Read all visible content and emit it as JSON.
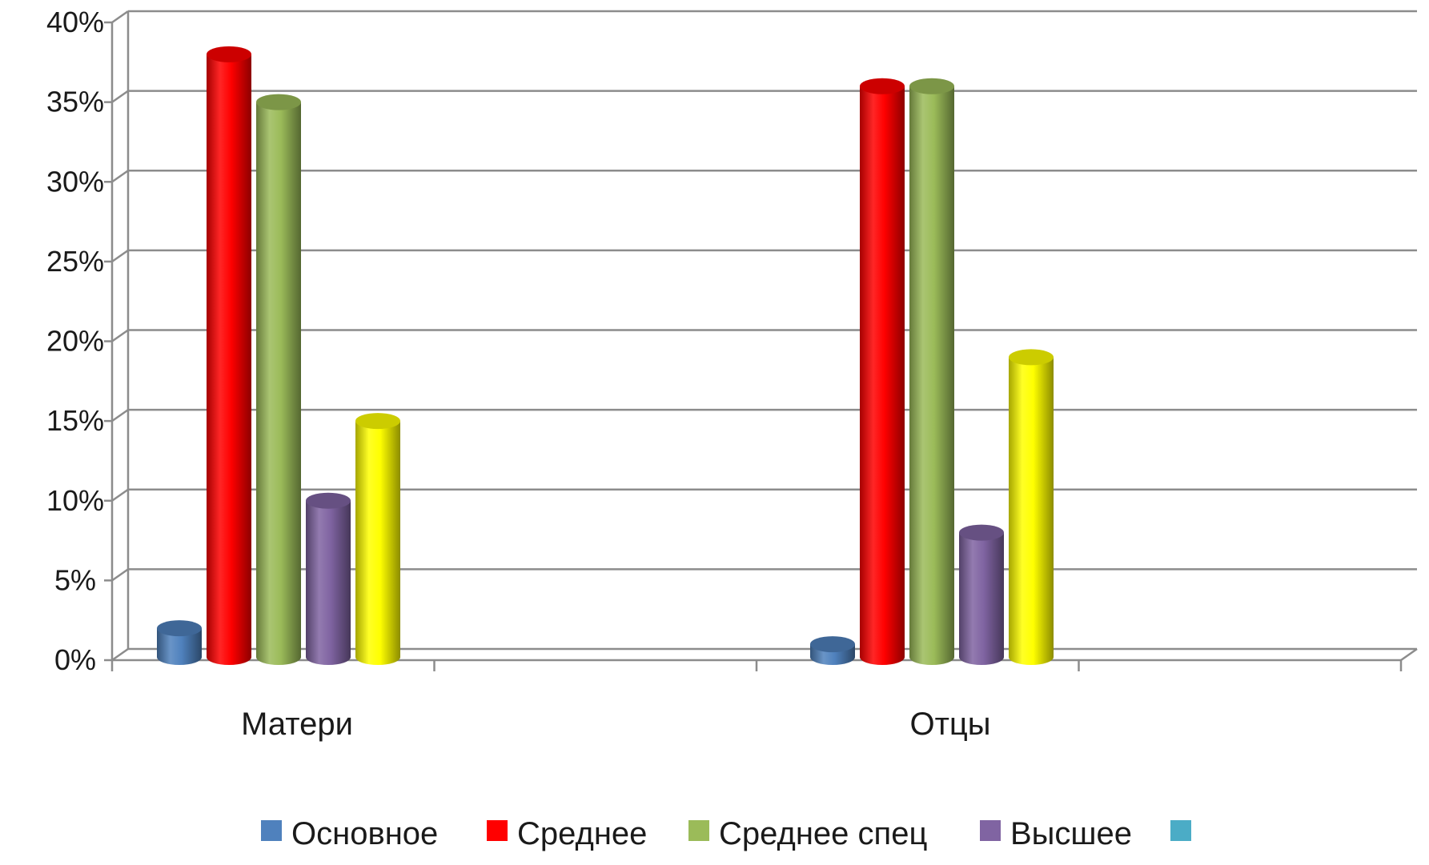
{
  "chart_data": {
    "type": "bar",
    "categories": [
      "Матери",
      "Отцы"
    ],
    "series": [
      {
        "name": "Основное",
        "color": "#4f81bd",
        "values": [
          2,
          1
        ]
      },
      {
        "name": "Среднее",
        "color": "#ff0000",
        "values": [
          38,
          36
        ]
      },
      {
        "name": "Среднее спец",
        "color": "#9bbb59",
        "values": [
          35,
          36
        ]
      },
      {
        "name": "Высшее",
        "color": "#8064a2",
        "values": [
          10,
          8
        ]
      },
      {
        "name": "",
        "color": "#ffff00",
        "values": [
          15,
          19
        ]
      }
    ],
    "legend_entries": [
      {
        "label": "Основное",
        "color": "#4f81bd"
      },
      {
        "label": "Среднее",
        "color": "#ff0000"
      },
      {
        "label": "Среднее спец",
        "color": "#9bbb59"
      },
      {
        "label": "Высшее",
        "color": "#8064a2"
      },
      {
        "label": "",
        "color": "#4bacc6"
      }
    ],
    "y_ticks": [
      "0%",
      "5%",
      "10%",
      "15%",
      "20%",
      "25%",
      "30%",
      "35%",
      "40%"
    ],
    "ylim": [
      0,
      40
    ],
    "y_unit": "%",
    "grid": true,
    "legend_position": "bottom",
    "style": "3d-cylinder"
  }
}
